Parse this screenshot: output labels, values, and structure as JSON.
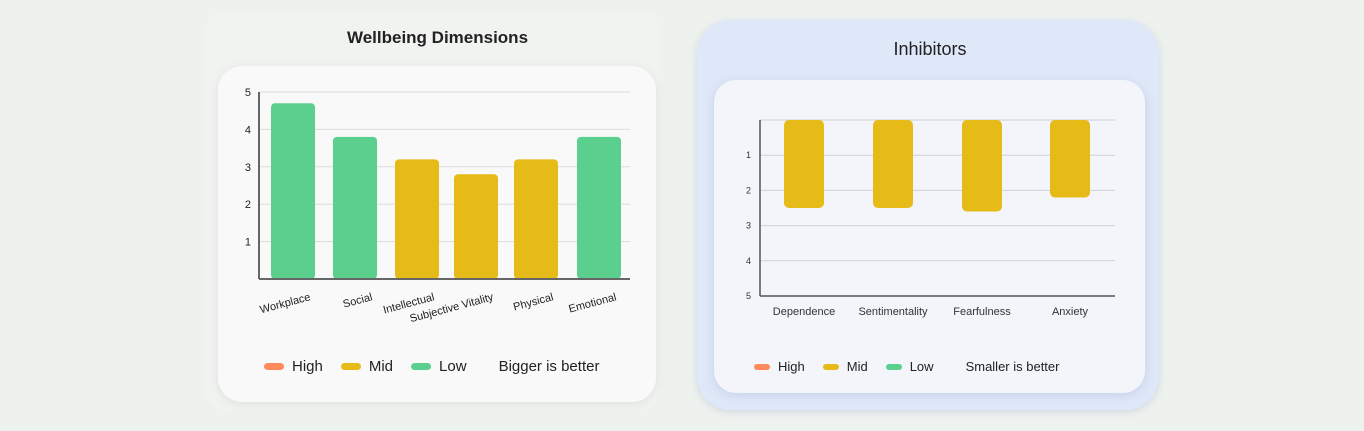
{
  "chart_data": [
    {
      "type": "bar",
      "title": "Wellbeing Dimensions",
      "categories": [
        "Workplace",
        "Social",
        "Intellectual",
        "Subjective Vitality",
        "Physical",
        "Emotional"
      ],
      "values": [
        4.7,
        3.8,
        3.2,
        2.8,
        3.2,
        3.8
      ],
      "levels": [
        "Low",
        "Low",
        "Mid",
        "Mid",
        "Mid",
        "Low"
      ],
      "ylim": [
        0,
        5
      ],
      "yticks": [
        "1",
        "2",
        "3",
        "4",
        "5"
      ],
      "grid": true,
      "legend": [
        {
          "label": "High",
          "color": "#ff8a5c"
        },
        {
          "label": "Mid",
          "color": "#e6bb18"
        },
        {
          "label": "Low",
          "color": "#5bcf8e"
        }
      ],
      "note": "Bigger is better"
    },
    {
      "type": "bar",
      "title": "Inhibitors",
      "y_inverted": true,
      "categories": [
        "Dependence",
        "Sentimentality",
        "Fearfulness",
        "Anxiety"
      ],
      "values": [
        2.5,
        2.5,
        2.6,
        2.2
      ],
      "levels": [
        "Mid",
        "Mid",
        "Mid",
        "Mid"
      ],
      "ylim": [
        0,
        5
      ],
      "yticks": [
        "1",
        "2",
        "3",
        "4",
        "5"
      ],
      "grid": true,
      "legend": [
        {
          "label": "High",
          "color": "#ff8a5c"
        },
        {
          "label": "Mid",
          "color": "#e6bb18"
        },
        {
          "label": "Low",
          "color": "#5bcf8e"
        }
      ],
      "note": "Smaller is better"
    }
  ]
}
